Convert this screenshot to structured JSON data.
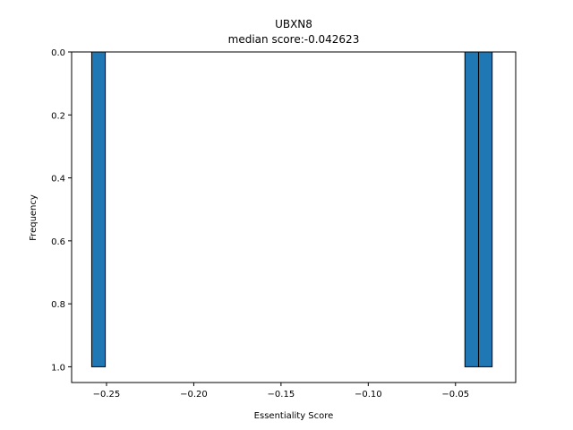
{
  "chart_data": {
    "type": "bar",
    "title": "UBXN8",
    "subtitle": "median score:-0.042623",
    "xlabel": "Essentiality Score",
    "ylabel": "Frequency",
    "xlim": [
      -0.27,
      -0.0155
    ],
    "ylim": [
      1.05,
      0.0
    ],
    "y_inverted": true,
    "x_ticks": [
      -0.25,
      -0.2,
      -0.15,
      -0.1,
      -0.05
    ],
    "x_tick_labels": [
      "−0.25",
      "−0.20",
      "−0.15",
      "−0.10",
      "−0.05"
    ],
    "y_ticks": [
      0.0,
      0.2,
      0.4,
      0.6,
      0.8,
      1.0
    ],
    "y_tick_labels": [
      "0.0",
      "0.2",
      "0.4",
      "0.6",
      "0.8",
      "1.0"
    ],
    "bar_color": "#1f77b4",
    "edge_color": "#000000",
    "grid": false,
    "bars": [
      {
        "x_start": -0.2585,
        "x_end": -0.2507,
        "value": 1
      },
      {
        "x_start": -0.0446,
        "x_end": -0.0368,
        "value": 1
      },
      {
        "x_start": -0.0368,
        "x_end": -0.029,
        "value": 1
      }
    ]
  }
}
